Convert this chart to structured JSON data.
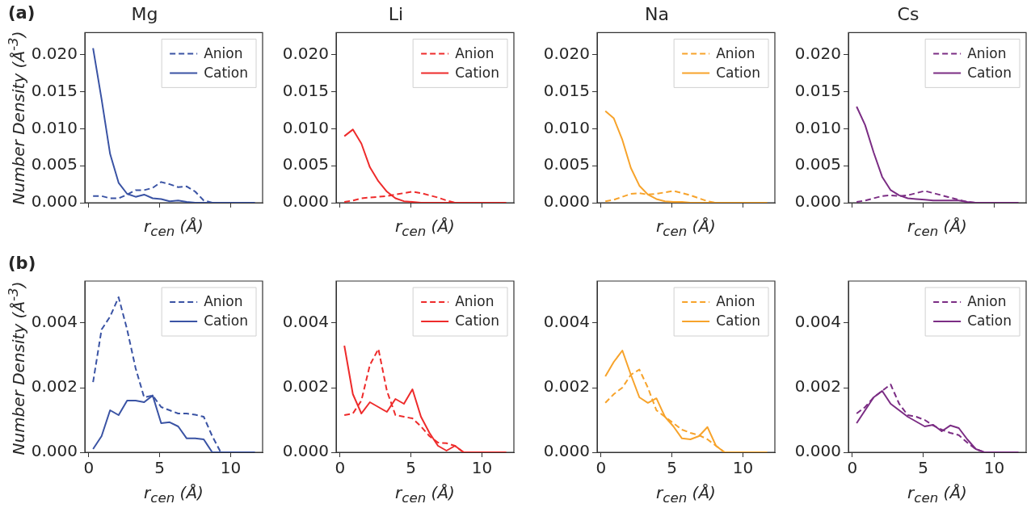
{
  "chart_data": [
    {
      "type": "line",
      "title": "Mg",
      "xlabel": "r$_{cen}$ (Å)",
      "ylabel": "Number Density (Å$^{-3}$)",
      "annotations": [
        "(a)"
      ],
      "x": [
        0.3,
        0.9,
        1.5,
        2.1,
        2.7,
        3.3,
        3.9,
        4.5,
        5.1,
        5.7,
        6.3,
        6.9,
        7.5,
        8.1,
        8.7,
        9.3,
        9.9,
        10.5,
        11.1,
        11.7
      ],
      "xlim": [
        -0.28,
        12.25
      ],
      "xticks": [
        0,
        5,
        10
      ],
      "ylim": [
        0,
        0.023
      ],
      "yticks": [
        {
          "value": 0,
          "label": "0.000"
        },
        {
          "value": 0.005,
          "label": "0.005"
        },
        {
          "value": 0.01,
          "label": "0.010"
        },
        {
          "value": 0.015,
          "label": "0.015"
        },
        {
          "value": 0.02,
          "label": "0.020"
        }
      ],
      "tick_labels": "y",
      "grid": false,
      "legend": "top right",
      "marker": "none",
      "series": [
        {
          "name": "Anion",
          "color": "#3a53a4",
          "line_style": "dashed",
          "values": [
            0.0009,
            0.0009,
            0.0006,
            0.0006,
            0.0011,
            0.0017,
            0.0017,
            0.002,
            0.0028,
            0.0025,
            0.0021,
            0.0022,
            0.0015,
            0.0003,
            0,
            0,
            0,
            0,
            0,
            0
          ]
        },
        {
          "name": "Cation",
          "color": "#3a53a4",
          "line_style": "solid",
          "values": [
            0.0209,
            0.014,
            0.0066,
            0.0027,
            0.0012,
            0.0008,
            0.0011,
            0.0006,
            0.0005,
            0.0002,
            0.0003,
            0.0001,
            0,
            0,
            0,
            0,
            0,
            0,
            0,
            0
          ]
        }
      ]
    },
    {
      "type": "line",
      "title": "Li",
      "xlabel": "r$_{cen}$ (Å)",
      "x": [
        0.3,
        0.9,
        1.5,
        2.1,
        2.7,
        3.3,
        3.9,
        4.5,
        5.1,
        5.7,
        6.3,
        6.9,
        7.5,
        8.1,
        8.7,
        9.3,
        9.9,
        10.5,
        11.1,
        11.7
      ],
      "xlim": [
        -0.28,
        12.25
      ],
      "xticks": [
        0,
        5,
        10
      ],
      "ylim": [
        0,
        0.023
      ],
      "yticks": [
        {
          "value": 0,
          "label": "0.000"
        },
        {
          "value": 0.005,
          "label": "0.005"
        },
        {
          "value": 0.01,
          "label": "0.010"
        },
        {
          "value": 0.015,
          "label": "0.015"
        },
        {
          "value": 0.02,
          "label": "0.020"
        }
      ],
      "tick_labels": "y",
      "grid": false,
      "legend": "top right",
      "marker": "none",
      "series": [
        {
          "name": "Anion",
          "color": "#ee2b2b",
          "line_style": "dashed",
          "values": [
            0.0001,
            0.0003,
            0.0006,
            0.0007,
            0.0008,
            0.0009,
            0.0011,
            0.0013,
            0.0015,
            0.0013,
            0.001,
            0.0007,
            0.0003,
            0,
            0,
            0,
            0,
            0,
            0,
            0
          ]
        },
        {
          "name": "Cation",
          "color": "#ee2b2b",
          "line_style": "solid",
          "values": [
            0.009,
            0.0099,
            0.008,
            0.0048,
            0.0029,
            0.0015,
            0.0006,
            0.0002,
            0.0001,
            0,
            0,
            0,
            0,
            0,
            0,
            0,
            0,
            0,
            0,
            0
          ]
        }
      ]
    },
    {
      "type": "line",
      "title": "Na",
      "xlabel": "r$_{cen}$ (Å)",
      "x": [
        0.3,
        0.9,
        1.5,
        2.1,
        2.7,
        3.3,
        3.9,
        4.5,
        5.1,
        5.7,
        6.3,
        6.9,
        7.5,
        8.1,
        8.7,
        9.3,
        9.9,
        10.5,
        11.1,
        11.7
      ],
      "xlim": [
        -0.28,
        12.25
      ],
      "xticks": [
        0,
        5,
        10
      ],
      "ylim": [
        0,
        0.023
      ],
      "yticks": [
        {
          "value": 0,
          "label": "0.000"
        },
        {
          "value": 0.005,
          "label": "0.005"
        },
        {
          "value": 0.01,
          "label": "0.010"
        },
        {
          "value": 0.015,
          "label": "0.015"
        },
        {
          "value": 0.02,
          "label": "0.020"
        }
      ],
      "tick_labels": "y",
      "grid": false,
      "legend": "top right",
      "marker": "none",
      "series": [
        {
          "name": "Anion",
          "color": "#f7a32b",
          "line_style": "dashed",
          "values": [
            0.0002,
            0.0004,
            0.0008,
            0.0012,
            0.0013,
            0.0011,
            0.0012,
            0.0014,
            0.0016,
            0.0013,
            0.001,
            0.0006,
            0.0002,
            0,
            0,
            0,
            0,
            0,
            0,
            0
          ]
        },
        {
          "name": "Cation",
          "color": "#f7a32b",
          "line_style": "solid",
          "values": [
            0.0124,
            0.0114,
            0.0085,
            0.0047,
            0.0023,
            0.0011,
            0.0005,
            0.0002,
            0.0001,
            0.0001,
            0,
            0,
            0,
            0,
            0,
            0,
            0,
            0,
            0,
            0
          ]
        }
      ]
    },
    {
      "type": "line",
      "title": "Cs",
      "xlabel": "r$_{cen}$ (Å)",
      "x": [
        0.3,
        0.9,
        1.5,
        2.1,
        2.7,
        3.3,
        3.9,
        4.5,
        5.1,
        5.7,
        6.3,
        6.9,
        7.5,
        8.1,
        8.7,
        9.3,
        9.9,
        10.5,
        11.1,
        11.7
      ],
      "xlim": [
        -0.28,
        12.25
      ],
      "xticks": [
        0,
        5,
        10
      ],
      "ylim": [
        0,
        0.023
      ],
      "yticks": [
        {
          "value": 0,
          "label": "0.000"
        },
        {
          "value": 0.005,
          "label": "0.005"
        },
        {
          "value": 0.01,
          "label": "0.010"
        },
        {
          "value": 0.015,
          "label": "0.015"
        },
        {
          "value": 0.02,
          "label": "0.020"
        }
      ],
      "tick_labels": "y",
      "grid": false,
      "legend": "top right",
      "marker": "none",
      "series": [
        {
          "name": "Anion",
          "color": "#7b2d84",
          "line_style": "dashed",
          "values": [
            0.0001,
            0.0003,
            0.0006,
            0.0009,
            0.001,
            0.0009,
            0.001,
            0.0013,
            0.0016,
            0.0013,
            0.001,
            0.0007,
            0.0004,
            0.0001,
            0,
            0,
            0,
            0,
            0,
            0
          ]
        },
        {
          "name": "Cation",
          "color": "#7b2d84",
          "line_style": "solid",
          "values": [
            0.013,
            0.0105,
            0.0068,
            0.0035,
            0.0017,
            0.001,
            0.0006,
            0.0005,
            0.0004,
            0.0003,
            0.0003,
            0.0003,
            0.0003,
            0.0001,
            0,
            0,
            0,
            0,
            0,
            0
          ]
        }
      ]
    },
    {
      "type": "line",
      "xlabel": "r$_{cen}$ (Å)",
      "ylabel": "Number Density (Å$^{-3}$)",
      "annotations": [
        "(b)"
      ],
      "x": [
        0.3,
        0.9,
        1.5,
        2.1,
        2.7,
        3.3,
        3.9,
        4.5,
        5.1,
        5.7,
        6.3,
        6.9,
        7.5,
        8.1,
        8.7,
        9.3,
        9.9,
        10.5,
        11.1,
        11.7
      ],
      "xlim": [
        -0.28,
        12.25
      ],
      "xticks": [
        0,
        5,
        10
      ],
      "ylim": [
        0,
        0.0053
      ],
      "yticks": [
        {
          "value": 0,
          "label": "0.000"
        },
        {
          "value": 0.002,
          "label": "0.002"
        },
        {
          "value": 0.004,
          "label": "0.004"
        }
      ],
      "grid": false,
      "legend": "top right",
      "marker": "none",
      "series": [
        {
          "name": "Anion",
          "color": "#3a53a4",
          "line_style": "dashed",
          "values": [
            0.00217,
            0.0038,
            0.0042,
            0.0048,
            0.0038,
            0.0026,
            0.0017,
            0.00176,
            0.0014,
            0.0013,
            0.0012,
            0.0012,
            0.00116,
            0.0011,
            0.0005,
            0,
            0,
            0,
            0,
            0
          ]
        },
        {
          "name": "Cation",
          "color": "#3a53a4",
          "line_style": "solid",
          "values": [
            0.0001,
            0.0005,
            0.0013,
            0.00115,
            0.0016,
            0.0016,
            0.00155,
            0.00176,
            0.0009,
            0.00093,
            0.0008,
            0.00043,
            0.00043,
            0.0004,
            0,
            0,
            0,
            0,
            0,
            0
          ]
        }
      ]
    },
    {
      "type": "line",
      "xlabel": "r$_{cen}$ (Å)",
      "x": [
        0.3,
        0.9,
        1.5,
        2.1,
        2.7,
        3.3,
        3.9,
        4.5,
        5.1,
        5.7,
        6.3,
        6.9,
        7.5,
        8.1,
        8.7,
        9.3,
        9.9,
        10.5,
        11.1,
        11.7
      ],
      "xlim": [
        -0.28,
        12.25
      ],
      "xticks": [
        0,
        5,
        10
      ],
      "ylim": [
        0,
        0.0053
      ],
      "yticks": [
        {
          "value": 0,
          "label": "0.000"
        },
        {
          "value": 0.002,
          "label": "0.002"
        },
        {
          "value": 0.004,
          "label": "0.004"
        }
      ],
      "grid": false,
      "legend": "top right",
      "marker": "none",
      "series": [
        {
          "name": "Anion",
          "color": "#ee2b2b",
          "line_style": "dashed",
          "values": [
            0.00115,
            0.0012,
            0.0016,
            0.0027,
            0.0032,
            0.0019,
            0.00115,
            0.0011,
            0.00105,
            0.0008,
            0.0005,
            0.0003,
            0.00028,
            0.0002,
            0,
            0,
            0,
            0,
            0,
            0
          ]
        },
        {
          "name": "Cation",
          "color": "#ee2b2b",
          "line_style": "solid",
          "values": [
            0.0033,
            0.0018,
            0.0012,
            0.00155,
            0.0014,
            0.00125,
            0.00165,
            0.0015,
            0.00195,
            0.0011,
            0.0006,
            0.0002,
            5e-05,
            0.0002,
            0,
            0,
            0,
            0,
            0,
            0
          ]
        }
      ]
    },
    {
      "type": "line",
      "xlabel": "r$_{cen}$ (Å)",
      "x": [
        0.3,
        0.9,
        1.5,
        2.1,
        2.7,
        3.3,
        3.9,
        4.5,
        5.1,
        5.7,
        6.3,
        6.9,
        7.5,
        8.1,
        8.7,
        9.3,
        9.9,
        10.5,
        11.1,
        11.7
      ],
      "xlim": [
        -0.28,
        12.25
      ],
      "xticks": [
        0,
        5,
        10
      ],
      "ylim": [
        0,
        0.0053
      ],
      "yticks": [
        {
          "value": 0,
          "label": "0.000"
        },
        {
          "value": 0.002,
          "label": "0.002"
        },
        {
          "value": 0.004,
          "label": "0.004"
        }
      ],
      "grid": false,
      "legend": "top right",
      "marker": "none",
      "series": [
        {
          "name": "Anion",
          "color": "#f7a32b",
          "line_style": "dashed",
          "values": [
            0.00153,
            0.0018,
            0.002,
            0.0024,
            0.00256,
            0.002,
            0.0013,
            0.0011,
            0.0009,
            0.0007,
            0.0006,
            0.00053,
            0.0004,
            0.0002,
            0,
            0,
            0,
            0,
            0,
            0
          ]
        },
        {
          "name": "Cation",
          "color": "#f7a32b",
          "line_style": "solid",
          "values": [
            0.00235,
            0.0028,
            0.00315,
            0.0024,
            0.0017,
            0.00153,
            0.00167,
            0.0011,
            0.0008,
            0.00043,
            0.0004,
            0.0005,
            0.00078,
            0.0002,
            0,
            0,
            0,
            0,
            0,
            0
          ]
        }
      ]
    },
    {
      "type": "line",
      "xlabel": "r$_{cen}$ (Å)",
      "x": [
        0.3,
        0.9,
        1.5,
        2.1,
        2.7,
        3.3,
        3.9,
        4.5,
        5.1,
        5.7,
        6.3,
        6.9,
        7.5,
        8.1,
        8.7,
        9.3,
        9.9,
        10.5,
        11.1,
        11.7
      ],
      "xlim": [
        -0.28,
        12.25
      ],
      "xticks": [
        0,
        5,
        10
      ],
      "ylim": [
        0,
        0.0053
      ],
      "yticks": [
        {
          "value": 0,
          "label": "0.000"
        },
        {
          "value": 0.002,
          "label": "0.002"
        },
        {
          "value": 0.004,
          "label": "0.004"
        }
      ],
      "grid": false,
      "legend": "top right",
      "marker": "none",
      "series": [
        {
          "name": "Anion",
          "color": "#7b2d84",
          "line_style": "dashed",
          "values": [
            0.0012,
            0.0014,
            0.0017,
            0.0019,
            0.0021,
            0.0015,
            0.00115,
            0.0011,
            0.001,
            0.00083,
            0.0007,
            0.0006,
            0.00053,
            0.0003,
            0.0001,
            0,
            0,
            0,
            0,
            0
          ]
        },
        {
          "name": "Cation",
          "color": "#7b2d84",
          "line_style": "solid",
          "values": [
            0.0009,
            0.0013,
            0.0017,
            0.0019,
            0.0015,
            0.0013,
            0.0011,
            0.00095,
            0.0008,
            0.00085,
            0.00065,
            0.00083,
            0.00075,
            0.0004,
            0.0001,
            0,
            0,
            0,
            0,
            0
          ]
        }
      ]
    }
  ]
}
